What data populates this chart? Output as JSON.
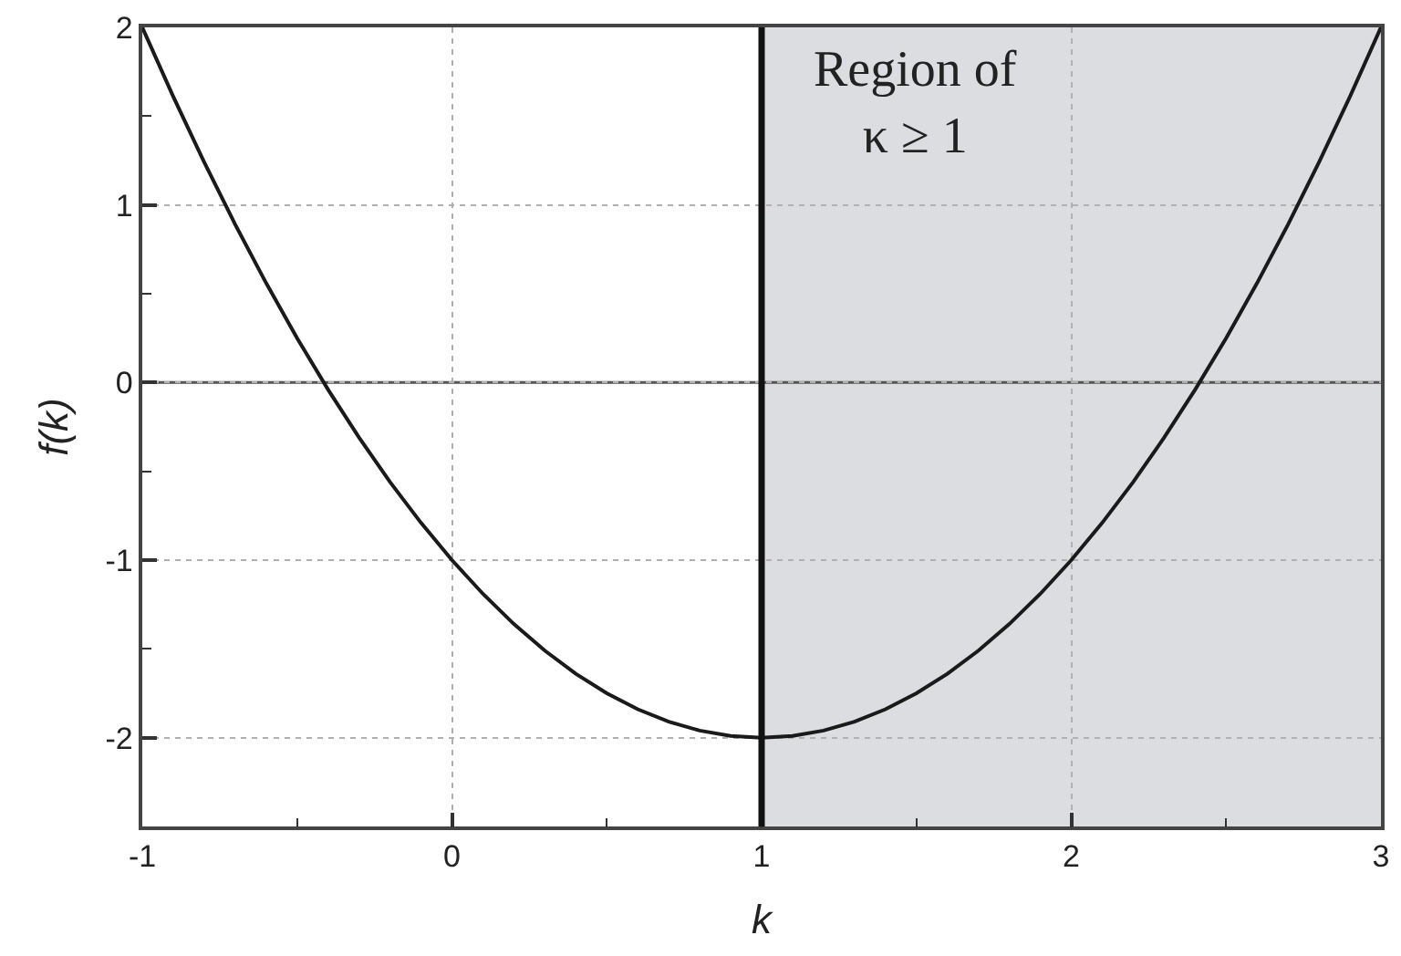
{
  "chart_data": {
    "type": "line",
    "xlabel": "k",
    "ylabel": "f(k)",
    "x": [
      -1,
      -0.9,
      -0.8,
      -0.7,
      -0.6,
      -0.5,
      -0.4,
      -0.3,
      -0.2,
      -0.1,
      0,
      0.1,
      0.2,
      0.3,
      0.4,
      0.5,
      0.6,
      0.7,
      0.8,
      0.9,
      1,
      1.1,
      1.2,
      1.3,
      1.4,
      1.5,
      1.6,
      1.7,
      1.8,
      1.9,
      2,
      2.1,
      2.2,
      2.3,
      2.4,
      2.5,
      2.6,
      2.7,
      2.8,
      2.9,
      3
    ],
    "series": [
      {
        "color": "#1a1a1a",
        "values": [
          2,
          1.61,
          1.24,
          0.89,
          0.56,
          0.25,
          -0.04,
          -0.31,
          -0.56,
          -0.79,
          -1,
          -1.19,
          -1.36,
          -1.51,
          -1.64,
          -1.75,
          -1.84,
          -1.91,
          -1.96,
          -1.99,
          -2,
          -1.99,
          -1.96,
          -1.91,
          -1.84,
          -1.75,
          -1.64,
          -1.51,
          -1.36,
          -1.19,
          -1,
          -0.79,
          -0.56,
          -0.31,
          -0.04,
          0.25,
          0.56,
          0.89,
          1.24,
          1.61,
          2
        ]
      }
    ],
    "xlim": [
      -1,
      3
    ],
    "ylim": [
      -2.5,
      2
    ],
    "xticks": [
      -1,
      {
        "value": -0.5,
        "label": null
      },
      0,
      {
        "value": 0.5,
        "label": null
      },
      1,
      {
        "value": 1.5,
        "label": null
      },
      2,
      {
        "value": 2.5,
        "label": null
      },
      3
    ],
    "yticks": [
      {
        "value": -2.5,
        "label": null
      },
      -2,
      {
        "value": -1.5,
        "label": null
      },
      -1,
      {
        "value": -0.5,
        "label": null
      },
      0,
      {
        "value": 0.5,
        "label": null
      },
      1,
      {
        "value": 1.5,
        "label": null
      },
      2
    ],
    "grid": true,
    "marker": "none",
    "line_style": "solid",
    "bands": [
      {
        "axis": "x",
        "from": 1,
        "to": 3,
        "label": "Region of\nκ ≥ 1",
        "color": "#dcdde0"
      }
    ],
    "ref_lines": [
      {
        "axis": "y",
        "value": 0,
        "color": "#555555",
        "line_style": "solid"
      },
      {
        "axis": "x",
        "value": 1,
        "color": "#111111",
        "line_style": "solid"
      }
    ]
  }
}
